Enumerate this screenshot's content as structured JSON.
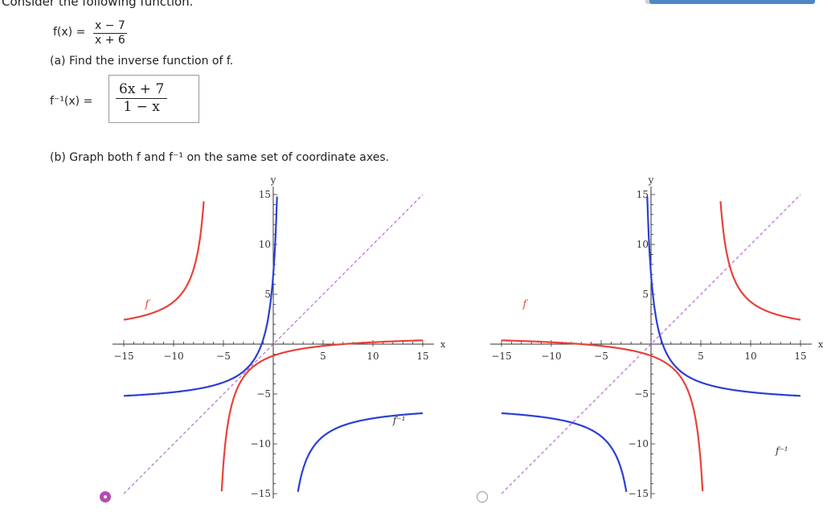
{
  "intro_text": "Consider the following function.",
  "function_label": "f(x) =",
  "function_numerator": "x − 7",
  "function_denominator": "x + 6",
  "part_a_text": "(a) Find the inverse function of f.",
  "inverse_label": "f⁻¹(x) =",
  "answer_numerator": "6x + 7",
  "answer_denominator": "1 − x",
  "part_b_text": "(b) Graph both f and f⁻¹ on the same set of coordinate axes.",
  "graph_options": [
    {
      "selected": true,
      "axis_x_label": "x",
      "axis_y_label": "y",
      "curve_f_label": "f",
      "curve_finv_label": "f⁻¹",
      "x_ticks": [
        "−15",
        "−10",
        "−5",
        "5",
        "10",
        "15"
      ],
      "y_ticks": [
        "15",
        "10",
        "5",
        "−5",
        "−10",
        "−15"
      ]
    },
    {
      "selected": false,
      "axis_x_label": "x",
      "axis_y_label": "y",
      "curve_f_label": "f",
      "curve_finv_label": "f⁻¹",
      "x_ticks": [
        "−15",
        "−10",
        "−5",
        "5",
        "10",
        "15"
      ],
      "y_ticks": [
        "15",
        "10",
        "5",
        "−5",
        "−10",
        "−15"
      ]
    }
  ],
  "colors": {
    "f_curve": "#e8423a",
    "finv_curve": "#2b3fd6",
    "diagonal": "#b46fc6",
    "radio_selected": "#b44cb0",
    "top_bar": "#4f86c6"
  }
}
